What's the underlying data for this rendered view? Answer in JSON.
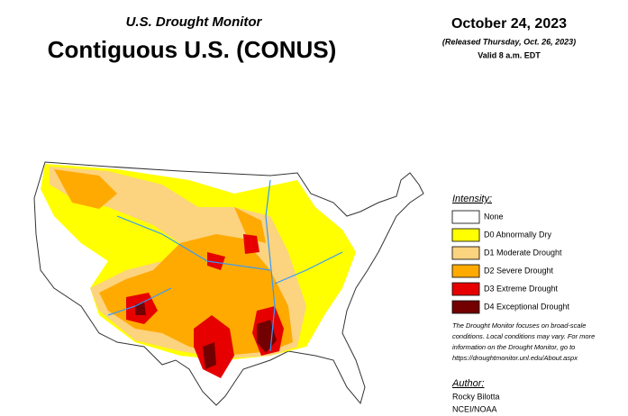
{
  "header": {
    "subtitle": "U.S. Drought Monitor",
    "title": "Contiguous U.S. (CONUS)",
    "date": "October 24, 2023",
    "released": "(Released Thursday, Oct. 26, 2023)",
    "valid": "Valid 8 a.m. EDT"
  },
  "legend": {
    "title": "Intensity:",
    "items": [
      {
        "label": "None",
        "color": "#ffffff"
      },
      {
        "label": "D0 Abnormally Dry",
        "color": "#ffff00"
      },
      {
        "label": "D1 Moderate Drought",
        "color": "#fcd37f"
      },
      {
        "label": "D2 Severe Drought",
        "color": "#ffaa00"
      },
      {
        "label": "D3 Extreme Drought",
        "color": "#e60000"
      },
      {
        "label": "D4 Exceptional Drought",
        "color": "#730000"
      }
    ]
  },
  "note": [
    "The Drought Monitor focuses on broad-scale",
    "conditions. Local conditions may vary. For more",
    "information on the Drought Monitor, go to",
    "https://droughtmonitor.unl.edu/About.aspx"
  ],
  "author": {
    "title": "Author:",
    "name": "Rocky Bilotta",
    "org": "NCEI/NOAA"
  }
}
